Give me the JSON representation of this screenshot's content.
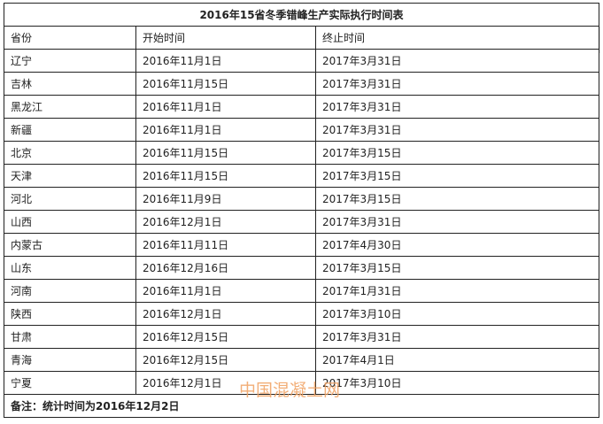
{
  "title": "2016年15省冬季错峰生产实际执行时间表",
  "headers": [
    "省份",
    "开始时间",
    "终止时间"
  ],
  "rows": [
    [
      "辽宁",
      "2016年11月1日",
      "2017年3月31日"
    ],
    [
      "吉林",
      "2016年11月15日",
      "2017年3月31日"
    ],
    [
      "黑龙江",
      "2016年11月1日",
      "2017年3月31日"
    ],
    [
      "新疆",
      "2016年11月1日",
      "2017年3月31日"
    ],
    [
      "北京",
      "2016年11月15日",
      "2017年3月15日"
    ],
    [
      "天津",
      "2016年11月15日",
      "2017年3月15日"
    ],
    [
      "河北",
      "2016年11月9日",
      "2017年3月15日"
    ],
    [
      "山西",
      "2016年12月1日",
      "2017年3月31日"
    ],
    [
      "内蒙古",
      "2016年11月11日",
      "2017年4月30日"
    ],
    [
      "山东",
      "2016年12月16日",
      "2017年3月15日"
    ],
    [
      "河南",
      "2016年11月1日",
      "2017年1月31日"
    ],
    [
      "陕西",
      "2016年12月1日",
      "2017年3月10日"
    ],
    [
      "甘肃",
      "2016年12月15日",
      "2017年3月31日"
    ],
    [
      "青海",
      "2016年12月15日",
      "2017年4月1日"
    ],
    [
      "宁夏",
      "2016年12月1日",
      "2017年3月10日"
    ]
  ],
  "note": "备注：统计时间为2016年12月2日",
  "watermark": "中国混凝土网",
  "colors": {
    "watermark": "#f0a060",
    "border": "#222222"
  }
}
